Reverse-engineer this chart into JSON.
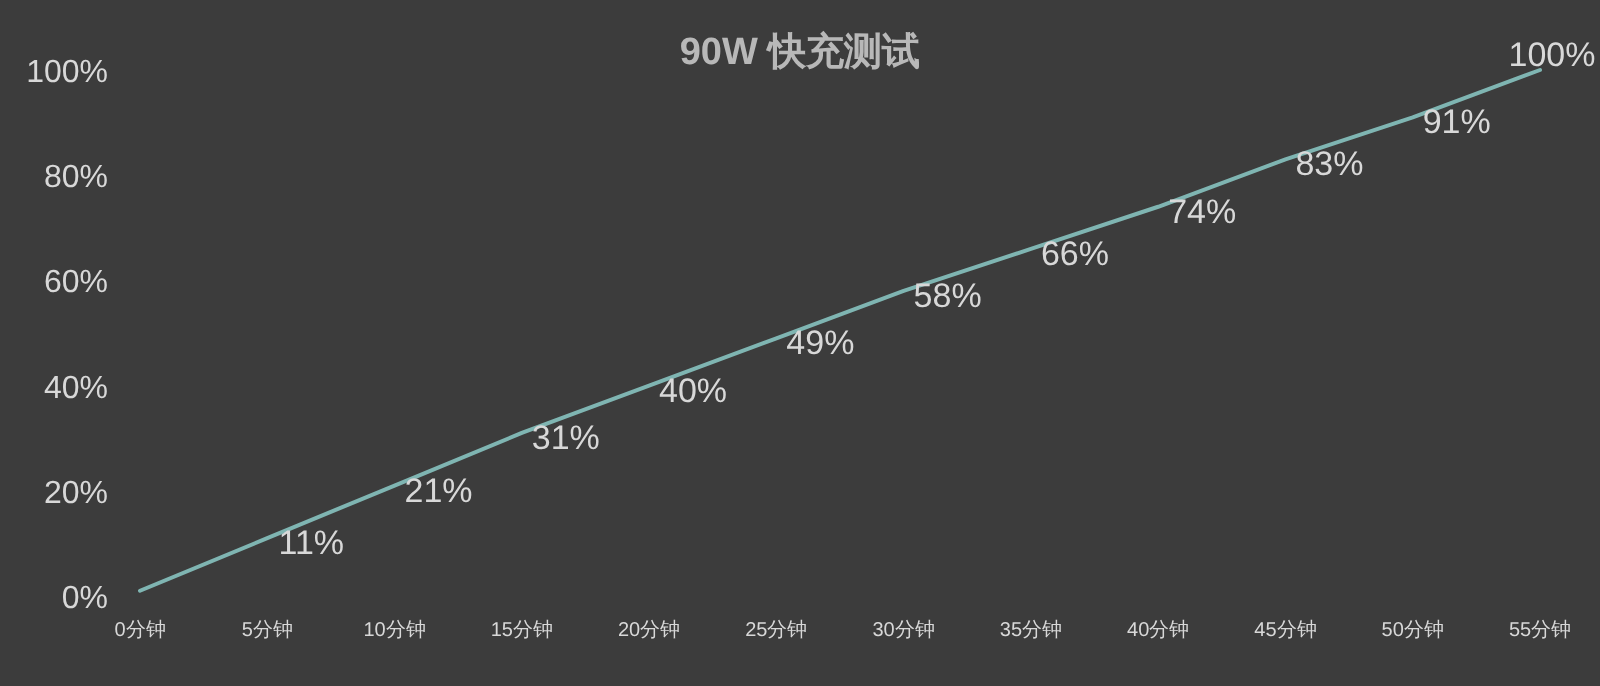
{
  "chart_data": {
    "type": "line",
    "title": "90W 快充测试",
    "categories": [
      "0分钟",
      "5分钟",
      "10分钟",
      "15分钟",
      "20分钟",
      "25分钟",
      "30分钟",
      "35分钟",
      "40分钟",
      "45分钟",
      "50分钟",
      "55分钟"
    ],
    "values": [
      1,
      11,
      21,
      31,
      40,
      49,
      58,
      66,
      74,
      83,
      91,
      100
    ],
    "value_labels": [
      null,
      "11%",
      "21%",
      "31%",
      "40%",
      "49%",
      "58%",
      "66%",
      "74%",
      "83%",
      "91%",
      "100%"
    ],
    "color": "#7fb5b2",
    "ylim": [
      0,
      100
    ],
    "yticks": [
      {
        "value": 0,
        "label": "0%"
      },
      {
        "value": 20,
        "label": "20%"
      },
      {
        "value": 40,
        "label": "40%"
      },
      {
        "value": 60,
        "label": "60%"
      },
      {
        "value": 80,
        "label": "80%"
      },
      {
        "value": 100,
        "label": "100%"
      }
    ]
  }
}
